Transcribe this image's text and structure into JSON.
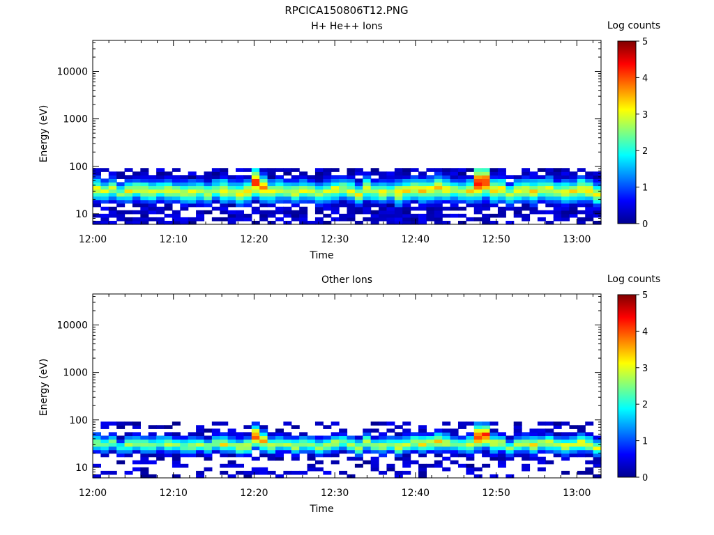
{
  "figure_title": "RPCICA150806T12.PNG",
  "chart_data": [
    {
      "type": "heatmap",
      "title": "H+ He++ Ions",
      "xlabel": "Time",
      "ylabel": "Energy (eV)",
      "y_scale": "log",
      "xlim": [
        "12:00",
        "13:03"
      ],
      "ylim": [
        6,
        45000
      ],
      "x_ticks": [
        "12:00",
        "12:10",
        "12:20",
        "12:30",
        "12:40",
        "12:50",
        "13:00"
      ],
      "y_ticks": [
        "10",
        "100",
        "1000",
        "10000"
      ],
      "colorbar": {
        "label": "Log counts",
        "ticks": [
          "0",
          "1",
          "2",
          "3",
          "4",
          "5"
        ],
        "range": [
          0,
          5
        ],
        "colormap": "jet"
      },
      "band": {
        "energy_range_eV": [
          6,
          92
        ],
        "peak_energy_eV": [
          33,
          30,
          34,
          27,
          30,
          33,
          31,
          29,
          32,
          32,
          30,
          28,
          29,
          31,
          27,
          33,
          31,
          30,
          27,
          29,
          46,
          36,
          29,
          32,
          31,
          28,
          32,
          30,
          27,
          30,
          33,
          34,
          31,
          26,
          35,
          29,
          29,
          30,
          28,
          31,
          34,
          31,
          33,
          36,
          34,
          32,
          30,
          31,
          45,
          48,
          32,
          33,
          26,
          31,
          32,
          30,
          33,
          34,
          30,
          29,
          30,
          33,
          31,
          26
        ],
        "peak_log_counts": [
          3.2,
          2.9,
          3.0,
          2.7,
          3.1,
          3.0,
          3.1,
          3.0,
          2.9,
          3.2,
          2.9,
          3.0,
          3.2,
          3.0,
          3.0,
          2.9,
          3.4,
          3.0,
          3.2,
          3.3,
          4.3,
          3.8,
          3.2,
          3.1,
          2.9,
          3.2,
          3.1,
          2.9,
          3.0,
          3.1,
          3.2,
          3.0,
          3.1,
          3.1,
          3.3,
          2.9,
          3.2,
          2.9,
          3.5,
          3.2,
          3.2,
          3.4,
          3.3,
          3.5,
          3.3,
          3.0,
          3.0,
          3.4,
          4.6,
          4.4,
          3.5,
          3.3,
          3.0,
          3.2,
          3.2,
          3.4,
          3.1,
          3.3,
          3.0,
          3.4,
          3.2,
          3.5,
          3.3,
          3.3
        ]
      }
    },
    {
      "type": "heatmap",
      "title": "Other Ions",
      "xlabel": "Time",
      "ylabel": "Energy (eV)",
      "y_scale": "log",
      "xlim": [
        "12:00",
        "13:03"
      ],
      "ylim": [
        6,
        45000
      ],
      "x_ticks": [
        "12:00",
        "12:10",
        "12:20",
        "12:30",
        "12:40",
        "12:50",
        "13:00"
      ],
      "y_ticks": [
        "10",
        "100",
        "1000",
        "10000"
      ],
      "colorbar": {
        "label": "Log counts",
        "ticks": [
          "0",
          "1",
          "2",
          "3",
          "4",
          "5"
        ],
        "range": [
          0,
          5
        ],
        "colormap": "jet"
      },
      "band": {
        "energy_range_eV": [
          6,
          92
        ],
        "peak_energy_eV": [
          33,
          30,
          34,
          27,
          30,
          33,
          31,
          29,
          32,
          32,
          30,
          28,
          29,
          31,
          27,
          33,
          31,
          30,
          27,
          29,
          46,
          36,
          29,
          32,
          31,
          28,
          32,
          30,
          27,
          30,
          33,
          34,
          31,
          26,
          35,
          29,
          29,
          30,
          28,
          31,
          34,
          31,
          33,
          36,
          34,
          32,
          30,
          31,
          45,
          48,
          32,
          33,
          26,
          31,
          32,
          30,
          33,
          34,
          30,
          29,
          30,
          33,
          31,
          26
        ],
        "peak_log_counts": [
          3.0,
          2.7,
          2.8,
          2.5,
          2.9,
          2.8,
          2.9,
          2.8,
          2.7,
          3.0,
          2.7,
          2.8,
          3.0,
          2.8,
          2.8,
          2.7,
          3.2,
          2.8,
          3.0,
          3.1,
          4.2,
          3.6,
          3.0,
          2.9,
          2.7,
          3.0,
          2.9,
          2.7,
          2.8,
          2.9,
          3.0,
          2.8,
          2.9,
          2.9,
          3.1,
          2.7,
          3.0,
          2.7,
          3.3,
          3.0,
          3.0,
          3.2,
          3.1,
          3.3,
          3.1,
          2.8,
          2.8,
          3.2,
          4.5,
          4.3,
          3.3,
          3.1,
          2.8,
          3.0,
          3.0,
          3.2,
          2.9,
          3.1,
          2.8,
          3.2,
          3.0,
          3.3,
          3.1,
          3.1
        ]
      }
    }
  ]
}
